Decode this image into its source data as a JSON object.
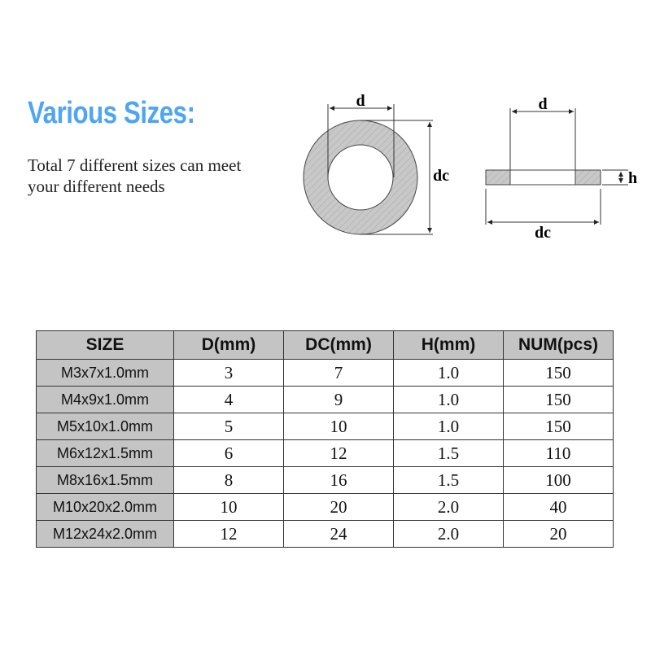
{
  "heading": {
    "title": "Various Sizes:",
    "description_line1": "Total 7 different sizes can meet",
    "description_line2": "your different needs"
  },
  "diagram": {
    "label_d": "d",
    "label_dc": "dc",
    "label_h": "h"
  },
  "table": {
    "headers": [
      "SIZE",
      "D(mm)",
      "DC(mm)",
      "H(mm)",
      "NUM(pcs)"
    ],
    "rows": [
      [
        "M3x7x1.0mm",
        "3",
        "7",
        "1.0",
        "150"
      ],
      [
        "M4x9x1.0mm",
        "4",
        "9",
        "1.0",
        "150"
      ],
      [
        "M5x10x1.0mm",
        "5",
        "10",
        "1.0",
        "150"
      ],
      [
        "M6x12x1.5mm",
        "6",
        "12",
        "1.5",
        "110"
      ],
      [
        "M8x16x1.5mm",
        "8",
        "16",
        "1.5",
        "100"
      ],
      [
        "M10x20x2.0mm",
        "10",
        "20",
        "2.0",
        "40"
      ],
      [
        "M12x24x2.0mm",
        "12",
        "24",
        "2.0",
        "20"
      ]
    ]
  }
}
